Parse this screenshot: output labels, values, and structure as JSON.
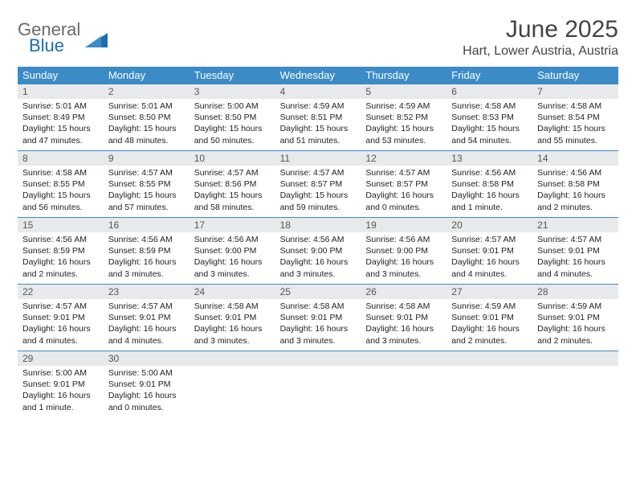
{
  "brand": {
    "text_gray": "General",
    "text_blue": "Blue",
    "triangle_color": "#1a6fb0"
  },
  "title": {
    "month": "June 2025",
    "location": "Hart, Lower Austria, Austria"
  },
  "colors": {
    "header_bg": "#3b8bc7",
    "daynum_bg": "#e8e9ea",
    "rule": "#3b8bc7"
  },
  "weekdays": [
    "Sunday",
    "Monday",
    "Tuesday",
    "Wednesday",
    "Thursday",
    "Friday",
    "Saturday"
  ],
  "days": [
    {
      "n": 1,
      "sunrise": "5:01 AM",
      "sunset": "8:49 PM",
      "daylight": "15 hours and 47 minutes."
    },
    {
      "n": 2,
      "sunrise": "5:01 AM",
      "sunset": "8:50 PM",
      "daylight": "15 hours and 48 minutes."
    },
    {
      "n": 3,
      "sunrise": "5:00 AM",
      "sunset": "8:50 PM",
      "daylight": "15 hours and 50 minutes."
    },
    {
      "n": 4,
      "sunrise": "4:59 AM",
      "sunset": "8:51 PM",
      "daylight": "15 hours and 51 minutes."
    },
    {
      "n": 5,
      "sunrise": "4:59 AM",
      "sunset": "8:52 PM",
      "daylight": "15 hours and 53 minutes."
    },
    {
      "n": 6,
      "sunrise": "4:58 AM",
      "sunset": "8:53 PM",
      "daylight": "15 hours and 54 minutes."
    },
    {
      "n": 7,
      "sunrise": "4:58 AM",
      "sunset": "8:54 PM",
      "daylight": "15 hours and 55 minutes."
    },
    {
      "n": 8,
      "sunrise": "4:58 AM",
      "sunset": "8:55 PM",
      "daylight": "15 hours and 56 minutes."
    },
    {
      "n": 9,
      "sunrise": "4:57 AM",
      "sunset": "8:55 PM",
      "daylight": "15 hours and 57 minutes."
    },
    {
      "n": 10,
      "sunrise": "4:57 AM",
      "sunset": "8:56 PM",
      "daylight": "15 hours and 58 minutes."
    },
    {
      "n": 11,
      "sunrise": "4:57 AM",
      "sunset": "8:57 PM",
      "daylight": "15 hours and 59 minutes."
    },
    {
      "n": 12,
      "sunrise": "4:57 AM",
      "sunset": "8:57 PM",
      "daylight": "16 hours and 0 minutes."
    },
    {
      "n": 13,
      "sunrise": "4:56 AM",
      "sunset": "8:58 PM",
      "daylight": "16 hours and 1 minute."
    },
    {
      "n": 14,
      "sunrise": "4:56 AM",
      "sunset": "8:58 PM",
      "daylight": "16 hours and 2 minutes."
    },
    {
      "n": 15,
      "sunrise": "4:56 AM",
      "sunset": "8:59 PM",
      "daylight": "16 hours and 2 minutes."
    },
    {
      "n": 16,
      "sunrise": "4:56 AM",
      "sunset": "8:59 PM",
      "daylight": "16 hours and 3 minutes."
    },
    {
      "n": 17,
      "sunrise": "4:56 AM",
      "sunset": "9:00 PM",
      "daylight": "16 hours and 3 minutes."
    },
    {
      "n": 18,
      "sunrise": "4:56 AM",
      "sunset": "9:00 PM",
      "daylight": "16 hours and 3 minutes."
    },
    {
      "n": 19,
      "sunrise": "4:56 AM",
      "sunset": "9:00 PM",
      "daylight": "16 hours and 3 minutes."
    },
    {
      "n": 20,
      "sunrise": "4:57 AM",
      "sunset": "9:01 PM",
      "daylight": "16 hours and 4 minutes."
    },
    {
      "n": 21,
      "sunrise": "4:57 AM",
      "sunset": "9:01 PM",
      "daylight": "16 hours and 4 minutes."
    },
    {
      "n": 22,
      "sunrise": "4:57 AM",
      "sunset": "9:01 PM",
      "daylight": "16 hours and 4 minutes."
    },
    {
      "n": 23,
      "sunrise": "4:57 AM",
      "sunset": "9:01 PM",
      "daylight": "16 hours and 4 minutes."
    },
    {
      "n": 24,
      "sunrise": "4:58 AM",
      "sunset": "9:01 PM",
      "daylight": "16 hours and 3 minutes."
    },
    {
      "n": 25,
      "sunrise": "4:58 AM",
      "sunset": "9:01 PM",
      "daylight": "16 hours and 3 minutes."
    },
    {
      "n": 26,
      "sunrise": "4:58 AM",
      "sunset": "9:01 PM",
      "daylight": "16 hours and 3 minutes."
    },
    {
      "n": 27,
      "sunrise": "4:59 AM",
      "sunset": "9:01 PM",
      "daylight": "16 hours and 2 minutes."
    },
    {
      "n": 28,
      "sunrise": "4:59 AM",
      "sunset": "9:01 PM",
      "daylight": "16 hours and 2 minutes."
    },
    {
      "n": 29,
      "sunrise": "5:00 AM",
      "sunset": "9:01 PM",
      "daylight": "16 hours and 1 minute."
    },
    {
      "n": 30,
      "sunrise": "5:00 AM",
      "sunset": "9:01 PM",
      "daylight": "16 hours and 0 minutes."
    }
  ],
  "labels": {
    "sunrise": "Sunrise:",
    "sunset": "Sunset:",
    "daylight": "Daylight:"
  },
  "layout": {
    "first_weekday_index": 0,
    "total_cells": 35
  }
}
